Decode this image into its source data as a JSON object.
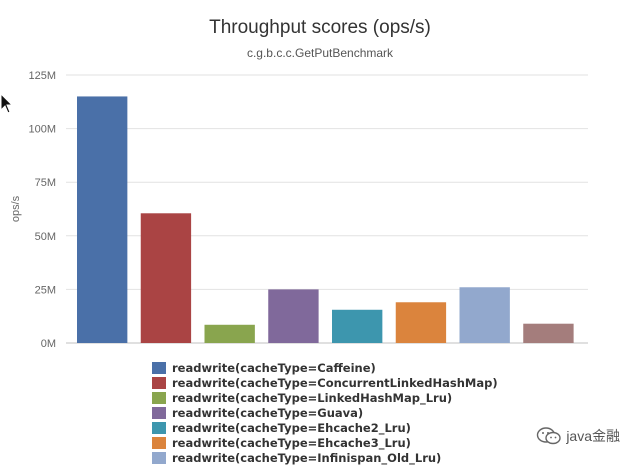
{
  "chart_data": {
    "type": "bar",
    "title": "Throughput scores (ops/s)",
    "subtitle": "c.g.b.c.c.GetPutBenchmark",
    "ylabel": "ops/s",
    "xlabel": "",
    "ylim": [
      0,
      125000000
    ],
    "yticks": [
      0,
      25000000,
      50000000,
      75000000,
      100000000,
      125000000
    ],
    "ytick_labels": [
      "0M",
      "25M",
      "50M",
      "75M",
      "100M",
      "125M"
    ],
    "grid": true,
    "legend_position": "bottom",
    "series": [
      {
        "name": "readwrite(cacheType=Caffeine)",
        "value": 115000000,
        "color": "#4a70a8"
      },
      {
        "name": "readwrite(cacheType=ConcurrentLinkedHashMap)",
        "value": 60500000,
        "color": "#aa4444"
      },
      {
        "name": "readwrite(cacheType=LinkedHashMap_Lru)",
        "value": 8500000,
        "color": "#89a54e"
      },
      {
        "name": "readwrite(cacheType=Guava)",
        "value": 25000000,
        "color": "#80699b"
      },
      {
        "name": "readwrite(cacheType=Ehcache2_Lru)",
        "value": 15500000,
        "color": "#3d96ae"
      },
      {
        "name": "readwrite(cacheType=Ehcache3_Lru)",
        "value": 19000000,
        "color": "#db843d"
      },
      {
        "name": "readwrite(cacheType=Infinispan_Old_Lru)",
        "value": 26000000,
        "color": "#92a8cd"
      },
      {
        "name": "",
        "value": 9000000,
        "color": "#a47d7c"
      }
    ]
  },
  "watermark": {
    "text": "java金融",
    "icon": "wechat-icon"
  },
  "cursor": {
    "icon": "mouse-pointer-icon"
  }
}
